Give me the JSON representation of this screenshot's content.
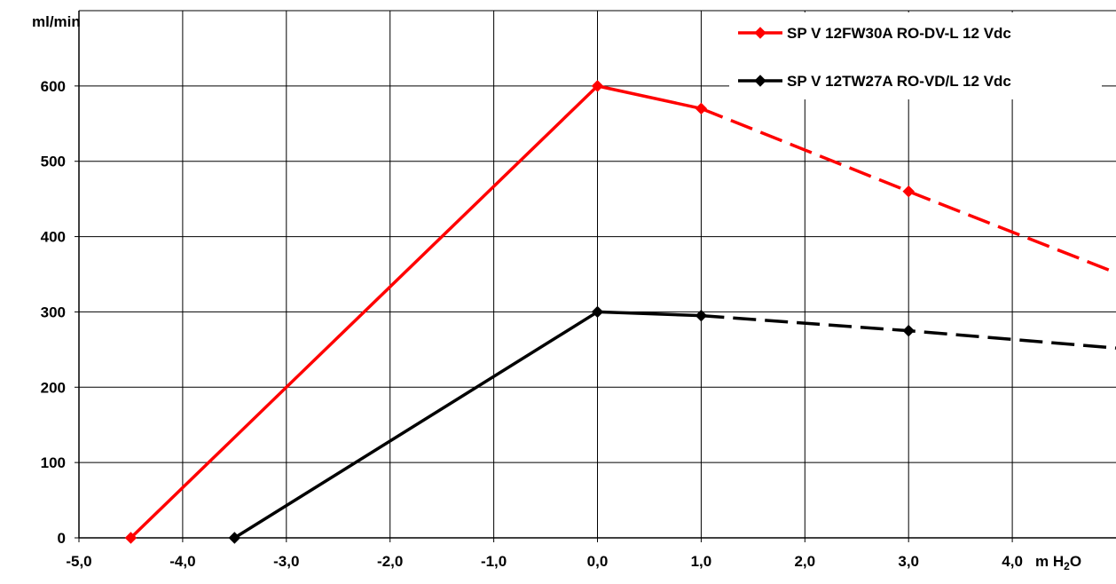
{
  "chart_data": {
    "type": "line",
    "title": "",
    "xlabel": "m H2O",
    "ylabel": "ml/min",
    "y_unit_label": "ml/min",
    "x_unit": {
      "base": "m H",
      "sub": "2",
      "tail": "O"
    },
    "xlim": [
      -5,
      5
    ],
    "ylim": [
      0,
      700
    ],
    "x_ticks": [
      -5,
      -4,
      -3,
      -2,
      -1,
      0,
      1,
      2,
      3,
      4
    ],
    "x_tick_labels": [
      "-5,0",
      "-4,0",
      "-3,0",
      "-2,0",
      "-1,0",
      "0,0",
      "1,0",
      "2,0",
      "3,0",
      "4,0"
    ],
    "y_ticks": [
      0,
      100,
      200,
      300,
      400,
      500,
      600
    ],
    "y_tick_labels": [
      "0",
      "100",
      "200",
      "300",
      "400",
      "500",
      "600"
    ],
    "grid": true,
    "legend": "top-right",
    "series": [
      {
        "name": "SP V 12FW30A RO-DV-L 12 Vdc",
        "color": "#ff0000",
        "points": [
          {
            "x": -4.5,
            "y": 0
          },
          {
            "x": 0,
            "y": 600
          },
          {
            "x": 1,
            "y": 570
          },
          {
            "x": 3,
            "y": 460
          }
        ],
        "dashed_extension": {
          "from_x": 1,
          "to_x": 5,
          "to_y": 352
        }
      },
      {
        "name": "SP V 12TW27A RO-VD/L 12 Vdc",
        "color": "#000000",
        "points": [
          {
            "x": -3.5,
            "y": 0
          },
          {
            "x": 0,
            "y": 300
          },
          {
            "x": 1,
            "y": 295
          },
          {
            "x": 3,
            "y": 275
          }
        ],
        "dashed_extension": {
          "from_x": 1,
          "to_x": 5,
          "to_y": 252
        }
      }
    ]
  }
}
